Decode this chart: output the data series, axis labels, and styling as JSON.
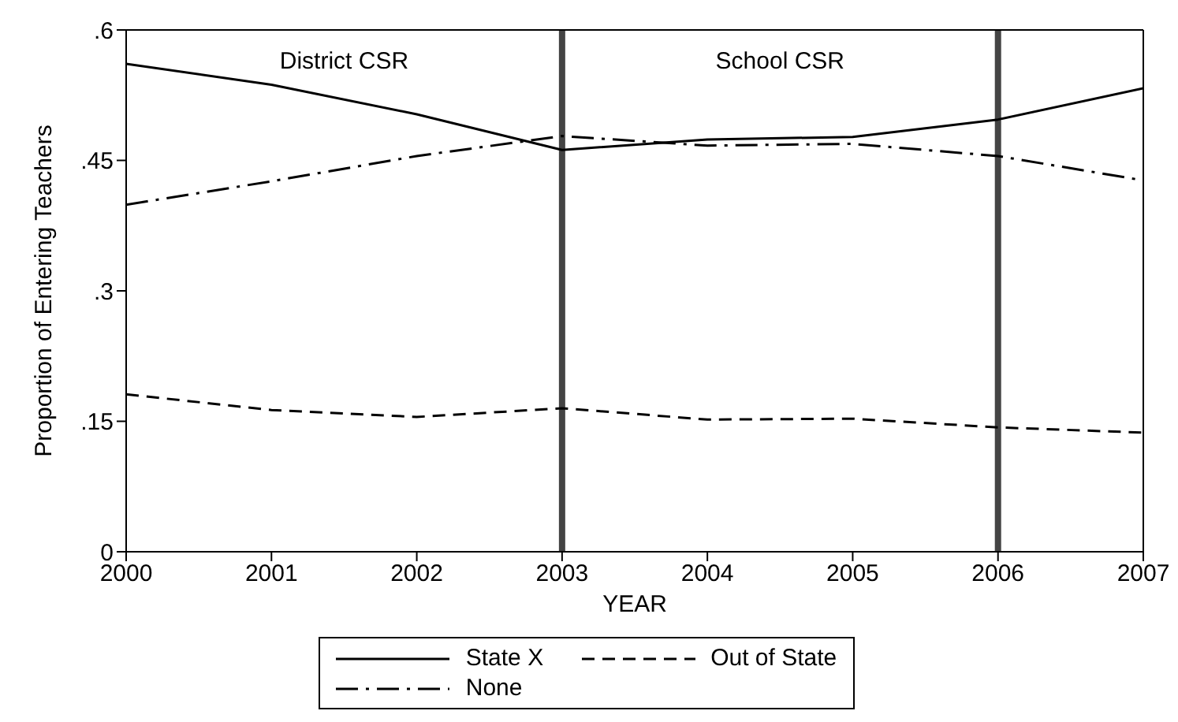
{
  "chart_data": {
    "type": "line",
    "xlabel": "YEAR",
    "ylabel": "Proportion of Entering Teachers",
    "x": [
      2000,
      2001,
      2002,
      2003,
      2004,
      2005,
      2006,
      2007
    ],
    "series": [
      {
        "name": "State X",
        "color": "#000000",
        "line_style": "solid",
        "values": [
          0.561,
          0.537,
          0.503,
          0.462,
          0.474,
          0.477,
          0.497,
          0.533
        ]
      },
      {
        "name": "Out of State",
        "color": "#000000",
        "line_style": "dashed",
        "values": [
          0.181,
          0.163,
          0.155,
          0.165,
          0.152,
          0.153,
          0.143,
          0.137
        ]
      },
      {
        "name": "None",
        "color": "#000000",
        "line_style": "dashdot",
        "values": [
          0.399,
          0.426,
          0.455,
          0.478,
          0.467,
          0.469,
          0.455,
          0.427
        ]
      }
    ],
    "xlim": [
      2000,
      2007
    ],
    "xticks": [
      2000,
      2001,
      2002,
      2003,
      2004,
      2005,
      2006,
      2007
    ],
    "ylim": [
      0,
      0.6
    ],
    "yticks": [
      0,
      {
        "value": 0.15,
        "label": ".15"
      },
      {
        "value": 0.3,
        "label": ".3"
      },
      {
        "value": 0.45,
        "label": ".45"
      },
      {
        "value": 0.6,
        "label": ".6"
      }
    ],
    "ref_lines": [
      {
        "axis": "x",
        "value": 2003,
        "color": "#444444"
      },
      {
        "axis": "x",
        "value": 2006,
        "color": "#444444"
      }
    ],
    "annotations": [
      "District CSR",
      "School CSR"
    ],
    "legend": "bottom",
    "marker": "none"
  }
}
